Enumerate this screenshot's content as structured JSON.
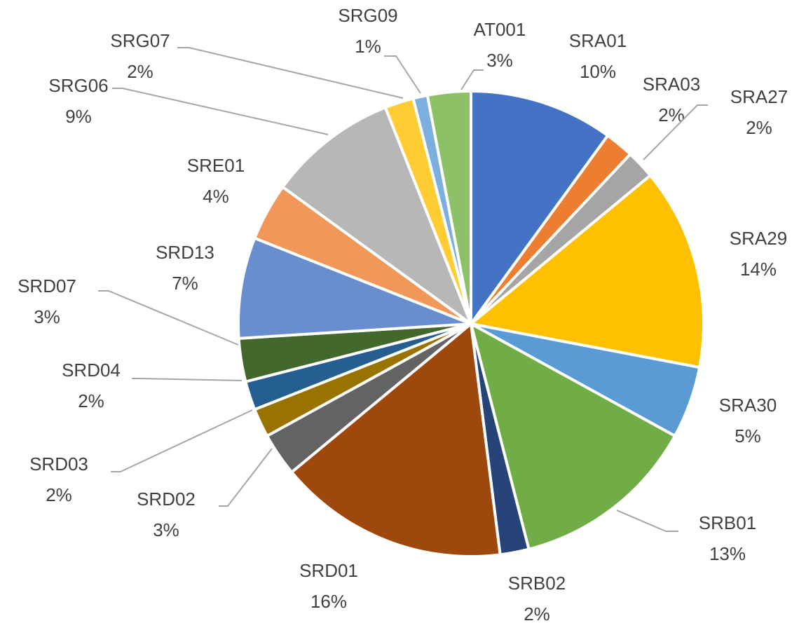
{
  "chart_data": {
    "type": "pie",
    "categories": [
      "SRA01",
      "SRA03",
      "SRA27",
      "SRA29",
      "SRA30",
      "SRB01",
      "SRB02",
      "SRD01",
      "SRD02",
      "SRD03",
      "SRD04",
      "SRD07",
      "SRD13",
      "SRE01",
      "SRG06",
      "SRG07",
      "SRG09",
      "AT001"
    ],
    "values": [
      10,
      2,
      2,
      14,
      5,
      13,
      2,
      16,
      3,
      2,
      2,
      3,
      7,
      4,
      9,
      2,
      1,
      3
    ],
    "value_labels": [
      "10%",
      "2%",
      "2%",
      "14%",
      "5%",
      "13%",
      "2%",
      "16%",
      "3%",
      "2%",
      "2%",
      "3%",
      "7%",
      "4%",
      "9%",
      "2%",
      "1%",
      "3%"
    ],
    "colors": [
      "#4472c4",
      "#ed7d31",
      "#a5a5a5",
      "#ffc000",
      "#5b9bd5",
      "#70ad47",
      "#264478",
      "#9e480e",
      "#636363",
      "#997300",
      "#255e91",
      "#43682b",
      "#698ed0",
      "#f1975a",
      "#b7b7b7",
      "#ffcd33",
      "#7cafdd",
      "#8cc168"
    ]
  }
}
